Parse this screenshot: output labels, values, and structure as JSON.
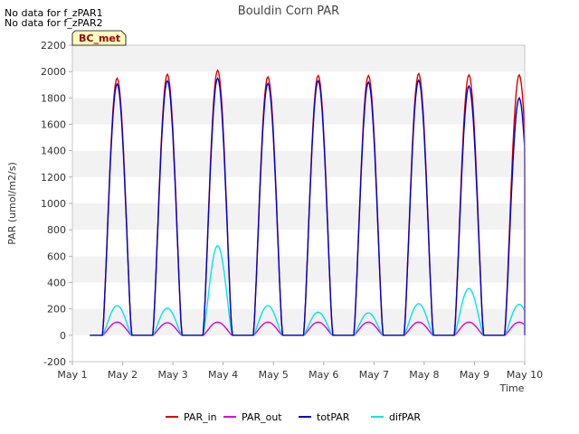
{
  "notes": [
    "No data for f_zPAR1",
    "No data for f_zPAR2"
  ],
  "site_tag": "BC_met",
  "chart_data": {
    "type": "line",
    "title": "Bouldin Corn PAR",
    "xlabel": "Time",
    "ylabel": "PAR (umol/m2/s)",
    "xlim": [
      1,
      10
    ],
    "ylim": [
      -200,
      2200
    ],
    "yticks": [
      -200,
      0,
      200,
      400,
      600,
      800,
      1000,
      1200,
      1400,
      1600,
      1800,
      2000,
      2200
    ],
    "xticks": [
      {
        "value": 1,
        "label": "May 1"
      },
      {
        "value": 2,
        "label": "May 2"
      },
      {
        "value": 3,
        "label": "May 3"
      },
      {
        "value": 4,
        "label": "May 4"
      },
      {
        "value": 5,
        "label": "May 5"
      },
      {
        "value": 6,
        "label": "May 6"
      },
      {
        "value": 7,
        "label": "May 7"
      },
      {
        "value": 8,
        "label": "May 8"
      },
      {
        "value": 9,
        "label": "May 9"
      },
      {
        "value": 10,
        "label": "May 10"
      }
    ],
    "grid_bands": true,
    "legend_position": "bottom",
    "series": [
      {
        "name": "PAR_in",
        "color": "#dd0000",
        "daily_peaks": [
          1950,
          1980,
          2010,
          1960,
          1970,
          1970,
          1985,
          1975,
          1975
        ]
      },
      {
        "name": "PAR_out",
        "color": "#dd00dd",
        "daily_peaks": [
          100,
          95,
          100,
          100,
          100,
          100,
          100,
          100,
          100
        ]
      },
      {
        "name": "totPAR",
        "color": "#0000cc",
        "daily_peaks": [
          1905,
          1930,
          1950,
          1910,
          1930,
          1920,
          1935,
          1890,
          1800
        ]
      },
      {
        "name": "difPAR",
        "color": "#00e5ee",
        "daily_peaks": [
          225,
          205,
          680,
          225,
          175,
          170,
          240,
          355,
          235
        ]
      }
    ],
    "daylight": {
      "sunrise_fraction": 0.25,
      "sunset_fraction": 0.83
    }
  }
}
